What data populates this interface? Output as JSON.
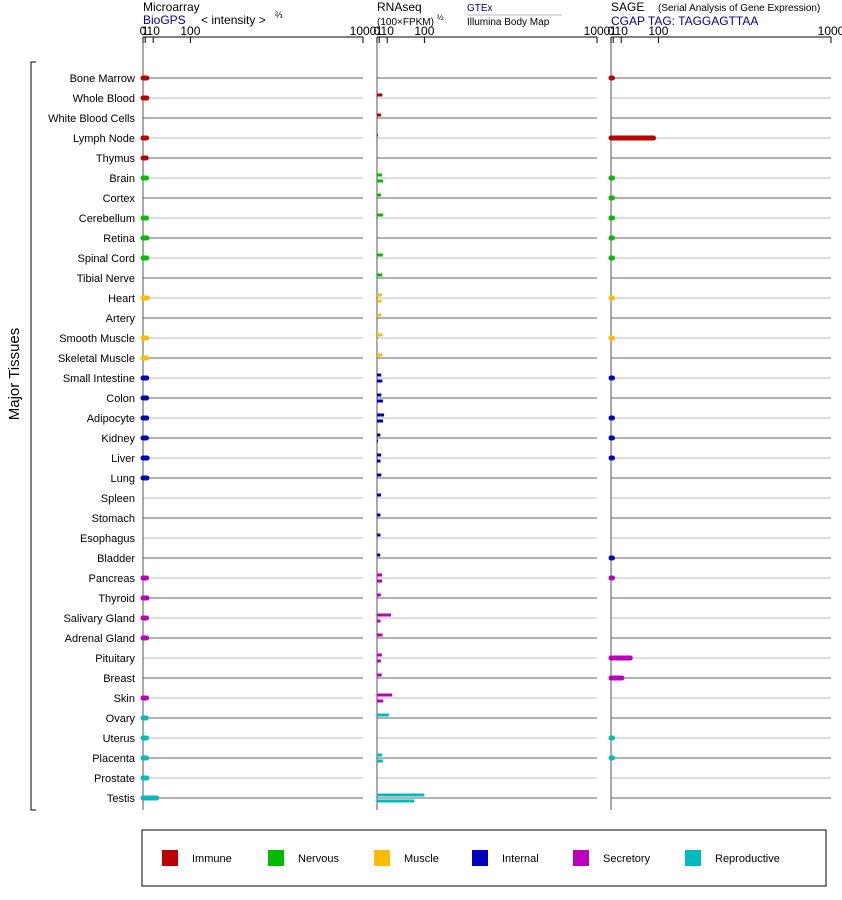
{
  "chart_data": {
    "type": "bar",
    "orientation": "horizontal",
    "y_axis_label": "Major Tissues",
    "tick_labels": [
      "0",
      "1",
      "10",
      "100",
      "1000"
    ],
    "tick_values": [
      0,
      1,
      10,
      100,
      1000
    ],
    "xlim": [
      0,
      1000
    ],
    "scale": "power 2/3",
    "panels": {
      "microarray": {
        "title": "Microarray",
        "title_suffix": "< intensity >",
        "exponent": "⅔",
        "subtitle": "BioGPS",
        "values": [
          2.3,
          2.3,
          null,
          2.1,
          1.8,
          2.0,
          null,
          2.0,
          2.3,
          2.2,
          null,
          2.8,
          null,
          2.3,
          2.3,
          2.2,
          2.2,
          2.2,
          2.0,
          2.6,
          2.4,
          null,
          null,
          null,
          null,
          2.0,
          2.4,
          2.0,
          2.1,
          null,
          null,
          2.0,
          1.8,
          2.0,
          2.0,
          2.3,
          15.5
        ]
      },
      "rnaseq": {
        "title": "RNAseq",
        "units": "(100×FPKM)",
        "exponent": "½",
        "subtitle_a": "GTEx",
        "subtitle_b": "Illumina Body Map",
        "gtex": [
          null,
          3.8,
          2.6,
          0.25,
          null,
          3.5,
          2.6,
          4.5,
          null,
          4.3,
          3.8,
          3.2,
          2.5,
          4.0,
          3.8,
          2.7,
          2.8,
          5.8,
          1.9,
          2.6,
          2.8,
          2.5,
          2.0,
          2.0,
          1.8,
          3.6,
          2.3,
          16.0,
          4.0,
          3.3,
          3.2,
          18.0,
          12.5,
          null,
          3.4,
          100.0
        ],
        "bodymap": [
          null,
          null,
          null,
          null,
          null,
          4.5,
          null,
          null,
          null,
          null,
          null,
          2.8,
          null,
          0.2,
          null,
          3.8,
          4.5,
          4.5,
          0.3,
          2.0,
          null,
          null,
          null,
          null,
          null,
          3.5,
          null,
          2.0,
          null,
          2.3,
          null,
          4.8,
          null,
          null,
          4.3,
          70.0
        ],
        "rows": [
          null,
          1,
          2,
          3,
          null,
          5,
          6,
          7,
          null,
          9,
          10,
          11,
          12,
          13,
          14,
          15,
          16,
          17,
          18,
          19,
          20,
          21,
          22,
          23,
          24,
          25,
          26,
          27,
          28,
          29,
          30,
          31,
          32,
          null,
          34,
          36
        ]
      },
      "sage": {
        "title": "SAGE",
        "note": "(Serial Analysis of Gene Expression)",
        "tag": "CGAP TAG: TAGGAGTTAA",
        "values": [
          0.05,
          null,
          null,
          85.0,
          null,
          0.04,
          0.03,
          0.04,
          0.04,
          0.04,
          null,
          0.03,
          null,
          0.03,
          null,
          0.05,
          null,
          0.05,
          0.05,
          0.05,
          null,
          null,
          null,
          null,
          0.05,
          0.05,
          null,
          null,
          null,
          26.0,
          11.0,
          null,
          null,
          0.04,
          0.04,
          null,
          null
        ]
      }
    },
    "tissues": [
      {
        "name": "Bone Marrow",
        "group": "immune"
      },
      {
        "name": "Whole Blood",
        "group": "immune"
      },
      {
        "name": "White Blood Cells",
        "group": "immune"
      },
      {
        "name": "Lymph Node",
        "group": "immune"
      },
      {
        "name": "Thymus",
        "group": "immune"
      },
      {
        "name": "Brain",
        "group": "nervous"
      },
      {
        "name": "Cortex",
        "group": "nervous"
      },
      {
        "name": "Cerebellum",
        "group": "nervous"
      },
      {
        "name": "Retina",
        "group": "nervous"
      },
      {
        "name": "Spinal Cord",
        "group": "nervous"
      },
      {
        "name": "Tibial Nerve",
        "group": "nervous"
      },
      {
        "name": "Heart",
        "group": "muscle"
      },
      {
        "name": "Artery",
        "group": "muscle"
      },
      {
        "name": "Smooth Muscle",
        "group": "muscle"
      },
      {
        "name": "Skeletal Muscle",
        "group": "muscle"
      },
      {
        "name": "Small Intestine",
        "group": "internal"
      },
      {
        "name": "Colon",
        "group": "internal"
      },
      {
        "name": "Adipocyte",
        "group": "internal"
      },
      {
        "name": "Kidney",
        "group": "internal"
      },
      {
        "name": "Liver",
        "group": "internal"
      },
      {
        "name": "Lung",
        "group": "internal"
      },
      {
        "name": "Spleen",
        "group": "internal"
      },
      {
        "name": "Stomach",
        "group": "internal"
      },
      {
        "name": "Esophagus",
        "group": "internal"
      },
      {
        "name": "Bladder",
        "group": "internal"
      },
      {
        "name": "Pancreas",
        "group": "secretory"
      },
      {
        "name": "Thyroid",
        "group": "secretory"
      },
      {
        "name": "Salivary Gland",
        "group": "secretory"
      },
      {
        "name": "Adrenal Gland",
        "group": "secretory"
      },
      {
        "name": "Pituitary",
        "group": "secretory"
      },
      {
        "name": "Breast",
        "group": "secretory"
      },
      {
        "name": "Skin",
        "group": "secretory"
      },
      {
        "name": "Ovary",
        "group": "reproductive"
      },
      {
        "name": "Uterus",
        "group": "reproductive"
      },
      {
        "name": "Placenta",
        "group": "reproductive"
      },
      {
        "name": "Prostate",
        "group": "reproductive"
      },
      {
        "name": "Testis",
        "group": "reproductive"
      }
    ],
    "legend": [
      {
        "key": "immune",
        "label": "Immune",
        "color": "#bb0000"
      },
      {
        "key": "nervous",
        "label": "Nervous",
        "color": "#00bb00"
      },
      {
        "key": "muscle",
        "label": "Muscle",
        "color": "#ffbb00"
      },
      {
        "key": "internal",
        "label": "Internal",
        "color": "#0000bb"
      },
      {
        "key": "secretory",
        "label": "Secretory",
        "color": "#bb00bb"
      },
      {
        "key": "reproductive",
        "label": "Reproductive",
        "color": "#00bbbb"
      }
    ]
  }
}
